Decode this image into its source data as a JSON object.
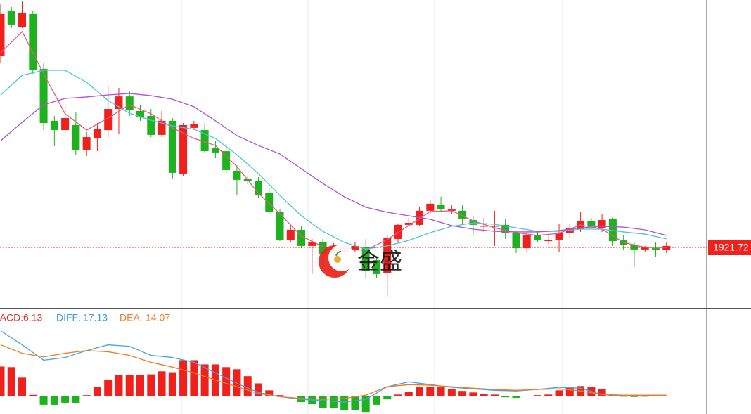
{
  "chart_data": [
    {
      "type": "candlestick",
      "open": [
        2025.0,
        2049.7,
        2040.9,
        2047.8,
        2018.2,
        1990.1,
        1985.1,
        1987.8,
        1974.5,
        1980.9,
        1985.1,
        1996.5,
        2003.3,
        1995.4,
        1992.7,
        1982.5,
        1990.1,
        1961.2,
        1986.3,
        1985.1,
        1975.6,
        1973.7,
        1963.1,
        1958.9,
        1957.8,
        1951.0,
        1940.7,
        1925.5,
        1931.2,
        1922.5,
        1924.4,
        1918.7,
        1919.4,
        1920.2,
        1921.7,
        1914.9,
        1908.0,
        1926.3,
        1933.9,
        1933.9,
        1941.5,
        1944.5,
        1941.5,
        1941.5,
        1936.5,
        1933.1,
        1933.1,
        1933.9,
        1929.3,
        1921.3,
        1928.2,
        1925.1,
        1925.9,
        1929.7,
        1931.6,
        1935.8,
        1932.0,
        1936.9,
        1925.5,
        1923.2,
        1920.6,
        1921.3,
        1920.2
      ],
      "high": [
        2053.5,
        2051.6,
        2054.6,
        2049.7,
        2021.2,
        1992.7,
        1999.2,
        1994.6,
        1984.0,
        1988.9,
        2009.0,
        2007.9,
        2006.0,
        1998.4,
        1996.5,
        1995.4,
        1991.6,
        1988.9,
        1990.1,
        1988.9,
        1979.4,
        1977.5,
        1966.1,
        1960.4,
        1959.7,
        1953.6,
        1942.2,
        1933.9,
        1933.1,
        1926.3,
        1926.3,
        1924.0,
        1923.2,
        1924.4,
        1926.3,
        1916.8,
        1928.2,
        1934.6,
        1937.7,
        1943.4,
        1947.2,
        1949.1,
        1944.5,
        1944.5,
        1938.4,
        1937.7,
        1941.5,
        1936.9,
        1930.8,
        1929.3,
        1930.1,
        1928.2,
        1934.6,
        1934.6,
        1940.7,
        1937.7,
        1939.6,
        1937.7,
        1928.2,
        1924.4,
        1922.5,
        1924.4,
        1924.4
      ],
      "low": [
        2021.2,
        2040.2,
        2040.2,
        2015.5,
        1985.1,
        1976.4,
        1983.2,
        1971.8,
        1971.1,
        1973.7,
        1981.3,
        1983.2,
        1992.7,
        1990.1,
        1981.3,
        1981.3,
        1958.5,
        1960.4,
        1985.5,
        1972.6,
        1969.9,
        1961.2,
        1949.8,
        1955.9,
        1948.3,
        1939.6,
        1925.1,
        1924.4,
        1921.3,
        1907.3,
        1909.2,
        1916.8,
        1917.9,
        1919.4,
        1905.4,
        1905.4,
        1895.1,
        1924.4,
        1933.1,
        1933.1,
        1939.6,
        1941.5,
        1939.6,
        1933.9,
        1928.2,
        1930.1,
        1922.5,
        1926.3,
        1918.7,
        1918.7,
        1924.4,
        1923.2,
        1919.4,
        1927.0,
        1930.1,
        1932.0,
        1930.1,
        1922.5,
        1920.6,
        1911.1,
        1919.4,
        1916.4,
        1918.7
      ],
      "close": [
        2047.8,
        2042.1,
        2048.5,
        2017.4,
        1988.9,
        1985.1,
        1991.6,
        1974.5,
        1981.3,
        1985.9,
        1996.5,
        2003.3,
        1995.8,
        1992.3,
        1982.5,
        1990.1,
        1962.0,
        1987.8,
        1988.2,
        1973.7,
        1973.0,
        1963.5,
        1958.2,
        1957.4,
        1950.2,
        1940.7,
        1925.5,
        1931.2,
        1922.5,
        1924.4,
        1917.9,
        1921.7,
        1921.7,
        1922.5,
        1909.2,
        1907.3,
        1927.0,
        1933.9,
        1935.0,
        1941.5,
        1945.3,
        1942.6,
        1942.2,
        1936.9,
        1933.9,
        1933.5,
        1933.5,
        1929.3,
        1921.3,
        1928.2,
        1925.5,
        1925.9,
        1929.7,
        1932.0,
        1935.8,
        1933.1,
        1936.5,
        1925.1,
        1923.2,
        1920.6,
        1921.7,
        1920.2,
        1922.5
      ],
      "up_color": "#f0201c",
      "down_color": "#1fb21f",
      "lines": [
        {
          "color": "#e8597f",
          "x": [
            0,
            2,
            4,
            6,
            8,
            10,
            12,
            14,
            16,
            18,
            20,
            22,
            24,
            26,
            28,
            30,
            32,
            34,
            36,
            38,
            40,
            42,
            44,
            46,
            48,
            50,
            52,
            54,
            56,
            58,
            60,
            62
          ],
          "values": [
            2026.9,
            2038.3,
            2015.5,
            1993.9,
            1985.1,
            1991.6,
            1998.8,
            1993.9,
            1986.3,
            1980.6,
            1976.8,
            1965.4,
            1951.0,
            1939.9,
            1927.8,
            1922.1,
            1920.6,
            1920.2,
            1925.9,
            1933.5,
            1941.1,
            1941.5,
            1936.1,
            1932.3,
            1929.7,
            1928.2,
            1929.3,
            1933.9,
            1931.6,
            1924.4,
            1921.7,
            1921.7
          ]
        },
        {
          "color": "#4cc6d4",
          "x": [
            0,
            2,
            4,
            6,
            8,
            10,
            12,
            14,
            16,
            18,
            20,
            22,
            24,
            26,
            28,
            30,
            32,
            34,
            36,
            38,
            40,
            42,
            44,
            46,
            48,
            50,
            52,
            54,
            56,
            58,
            60,
            62
          ],
          "values": [
            2004.1,
            2014.7,
            2017.4,
            2017.4,
            2010.9,
            2001.1,
            1994.2,
            1990.4,
            1987.4,
            1985.5,
            1980.6,
            1971.8,
            1961.6,
            1949.8,
            1938.8,
            1930.4,
            1924.4,
            1920.9,
            1922.5,
            1925.5,
            1929.7,
            1933.1,
            1935.0,
            1934.2,
            1932.3,
            1930.4,
            1930.4,
            1931.6,
            1931.6,
            1930.1,
            1928.9,
            1926.3
          ]
        },
        {
          "color": "#b04fd4",
          "x": [
            0,
            2,
            4,
            6,
            8,
            10,
            12,
            14,
            16,
            18,
            20,
            22,
            24,
            26,
            28,
            30,
            32,
            34,
            36,
            38,
            40,
            42,
            44,
            46,
            48,
            50,
            52,
            54,
            56,
            58,
            60,
            62
          ],
          "values": [
            1979.4,
            1989.3,
            1998.8,
            2002.2,
            2003.0,
            2004.1,
            2004.9,
            2003.7,
            2001.8,
            1997.7,
            1990.1,
            1982.1,
            1976.8,
            1972.2,
            1964.2,
            1956.3,
            1949.1,
            1943.4,
            1940.7,
            1938.8,
            1936.9,
            1933.5,
            1931.6,
            1930.4,
            1930.1,
            1930.1,
            1930.8,
            1932.3,
            1933.1,
            1932.7,
            1931.2,
            1928.2
          ]
        }
      ],
      "ylim": [
        1889.06,
        2055.37
      ],
      "yticks": [
        2050.81,
        2036.52,
        2022.23,
        2007.94,
        1993.65,
        1979.36,
        1965.07,
        1950.78,
        1936.49,
        1907.91,
        1893.62
      ],
      "last_price": 1921.72,
      "last_price_color": "#f0201c",
      "watermark": "金盛",
      "grid": true
    },
    {
      "type": "macd",
      "histogram": [
        9.7,
        9.5,
        6.0,
        0.3,
        -3.0,
        -3.0,
        -2.3,
        -2.5,
        0.2,
        3.0,
        5.3,
        6.9,
        6.9,
        6.9,
        7.1,
        8.1,
        7.8,
        11.8,
        11.8,
        10.4,
        10.4,
        9.5,
        8.8,
        6.5,
        4.1,
        1.8,
        0.2,
        -0.2,
        -2.1,
        -2.8,
        -4.0,
        -4.0,
        -4.7,
        -4.7,
        -5.4,
        -3.0,
        -1.2,
        0.4,
        1.4,
        2.8,
        3.0,
        2.8,
        2.3,
        1.6,
        1.1,
        0.7,
        0.4,
        -0.5,
        -0.7,
        -0.1,
        0.2,
        0.4,
        1.8,
        2.8,
        3.2,
        2.8,
        2.3,
        0.4,
        -0.3,
        -0.4,
        -0.3,
        -0.2,
        -0.2
      ],
      "up_color": "#f0201c",
      "down_color": "#1fb21f",
      "lines": [
        {
          "color": "#4aa3df",
          "x": [
            0,
            2,
            4,
            6,
            8,
            10,
            12,
            14,
            16,
            18,
            20,
            22,
            24,
            26,
            28,
            30,
            32,
            34,
            36,
            38,
            40,
            42,
            44,
            46,
            48,
            50,
            52,
            54,
            56,
            58,
            60,
            62
          ],
          "values": [
            21.5,
            16.9,
            11.8,
            12.7,
            15.0,
            16.9,
            16.4,
            13.4,
            12.7,
            11.1,
            7.6,
            4.1,
            1.1,
            -0.3,
            -1.2,
            -1.6,
            -2.1,
            -1.2,
            3.0,
            4.6,
            3.7,
            2.8,
            2.3,
            1.8,
            1.6,
            2.1,
            2.8,
            2.5,
            0.4,
            0.0,
            0.0,
            0.0
          ]
        },
        {
          "color": "#f07c2a",
          "x": [
            0,
            2,
            4,
            6,
            8,
            10,
            12,
            14,
            16,
            18,
            20,
            22,
            24,
            26,
            28,
            30,
            32,
            34,
            36,
            38,
            40,
            42,
            44,
            46,
            48,
            50,
            52,
            54,
            56,
            58,
            60,
            62
          ],
          "values": [
            16.9,
            14.1,
            12.9,
            14.1,
            15.0,
            14.6,
            13.4,
            11.1,
            9.5,
            7.6,
            5.2,
            3.0,
            0.7,
            -0.3,
            -0.9,
            -1.2,
            -0.9,
            0.2,
            3.0,
            3.7,
            3.5,
            3.0,
            2.5,
            2.1,
            1.8,
            2.1,
            2.3,
            1.6,
            0.4,
            0.2,
            0.2,
            0.2
          ]
        }
      ],
      "legend": [
        {
          "label": "MACD:",
          "value": 6.13,
          "color": "#e0302a"
        },
        {
          "label": "DIFF:",
          "value": 17.13,
          "color": "#3d9be0"
        },
        {
          "label": "DEA:",
          "value": 14.07,
          "color": "#f07c2a"
        }
      ],
      "ylim": [
        -6.05,
        28.69
      ],
      "yticks": [
        20.35,
        11.55,
        2.75,
        -6.05
      ],
      "grid": true
    }
  ]
}
